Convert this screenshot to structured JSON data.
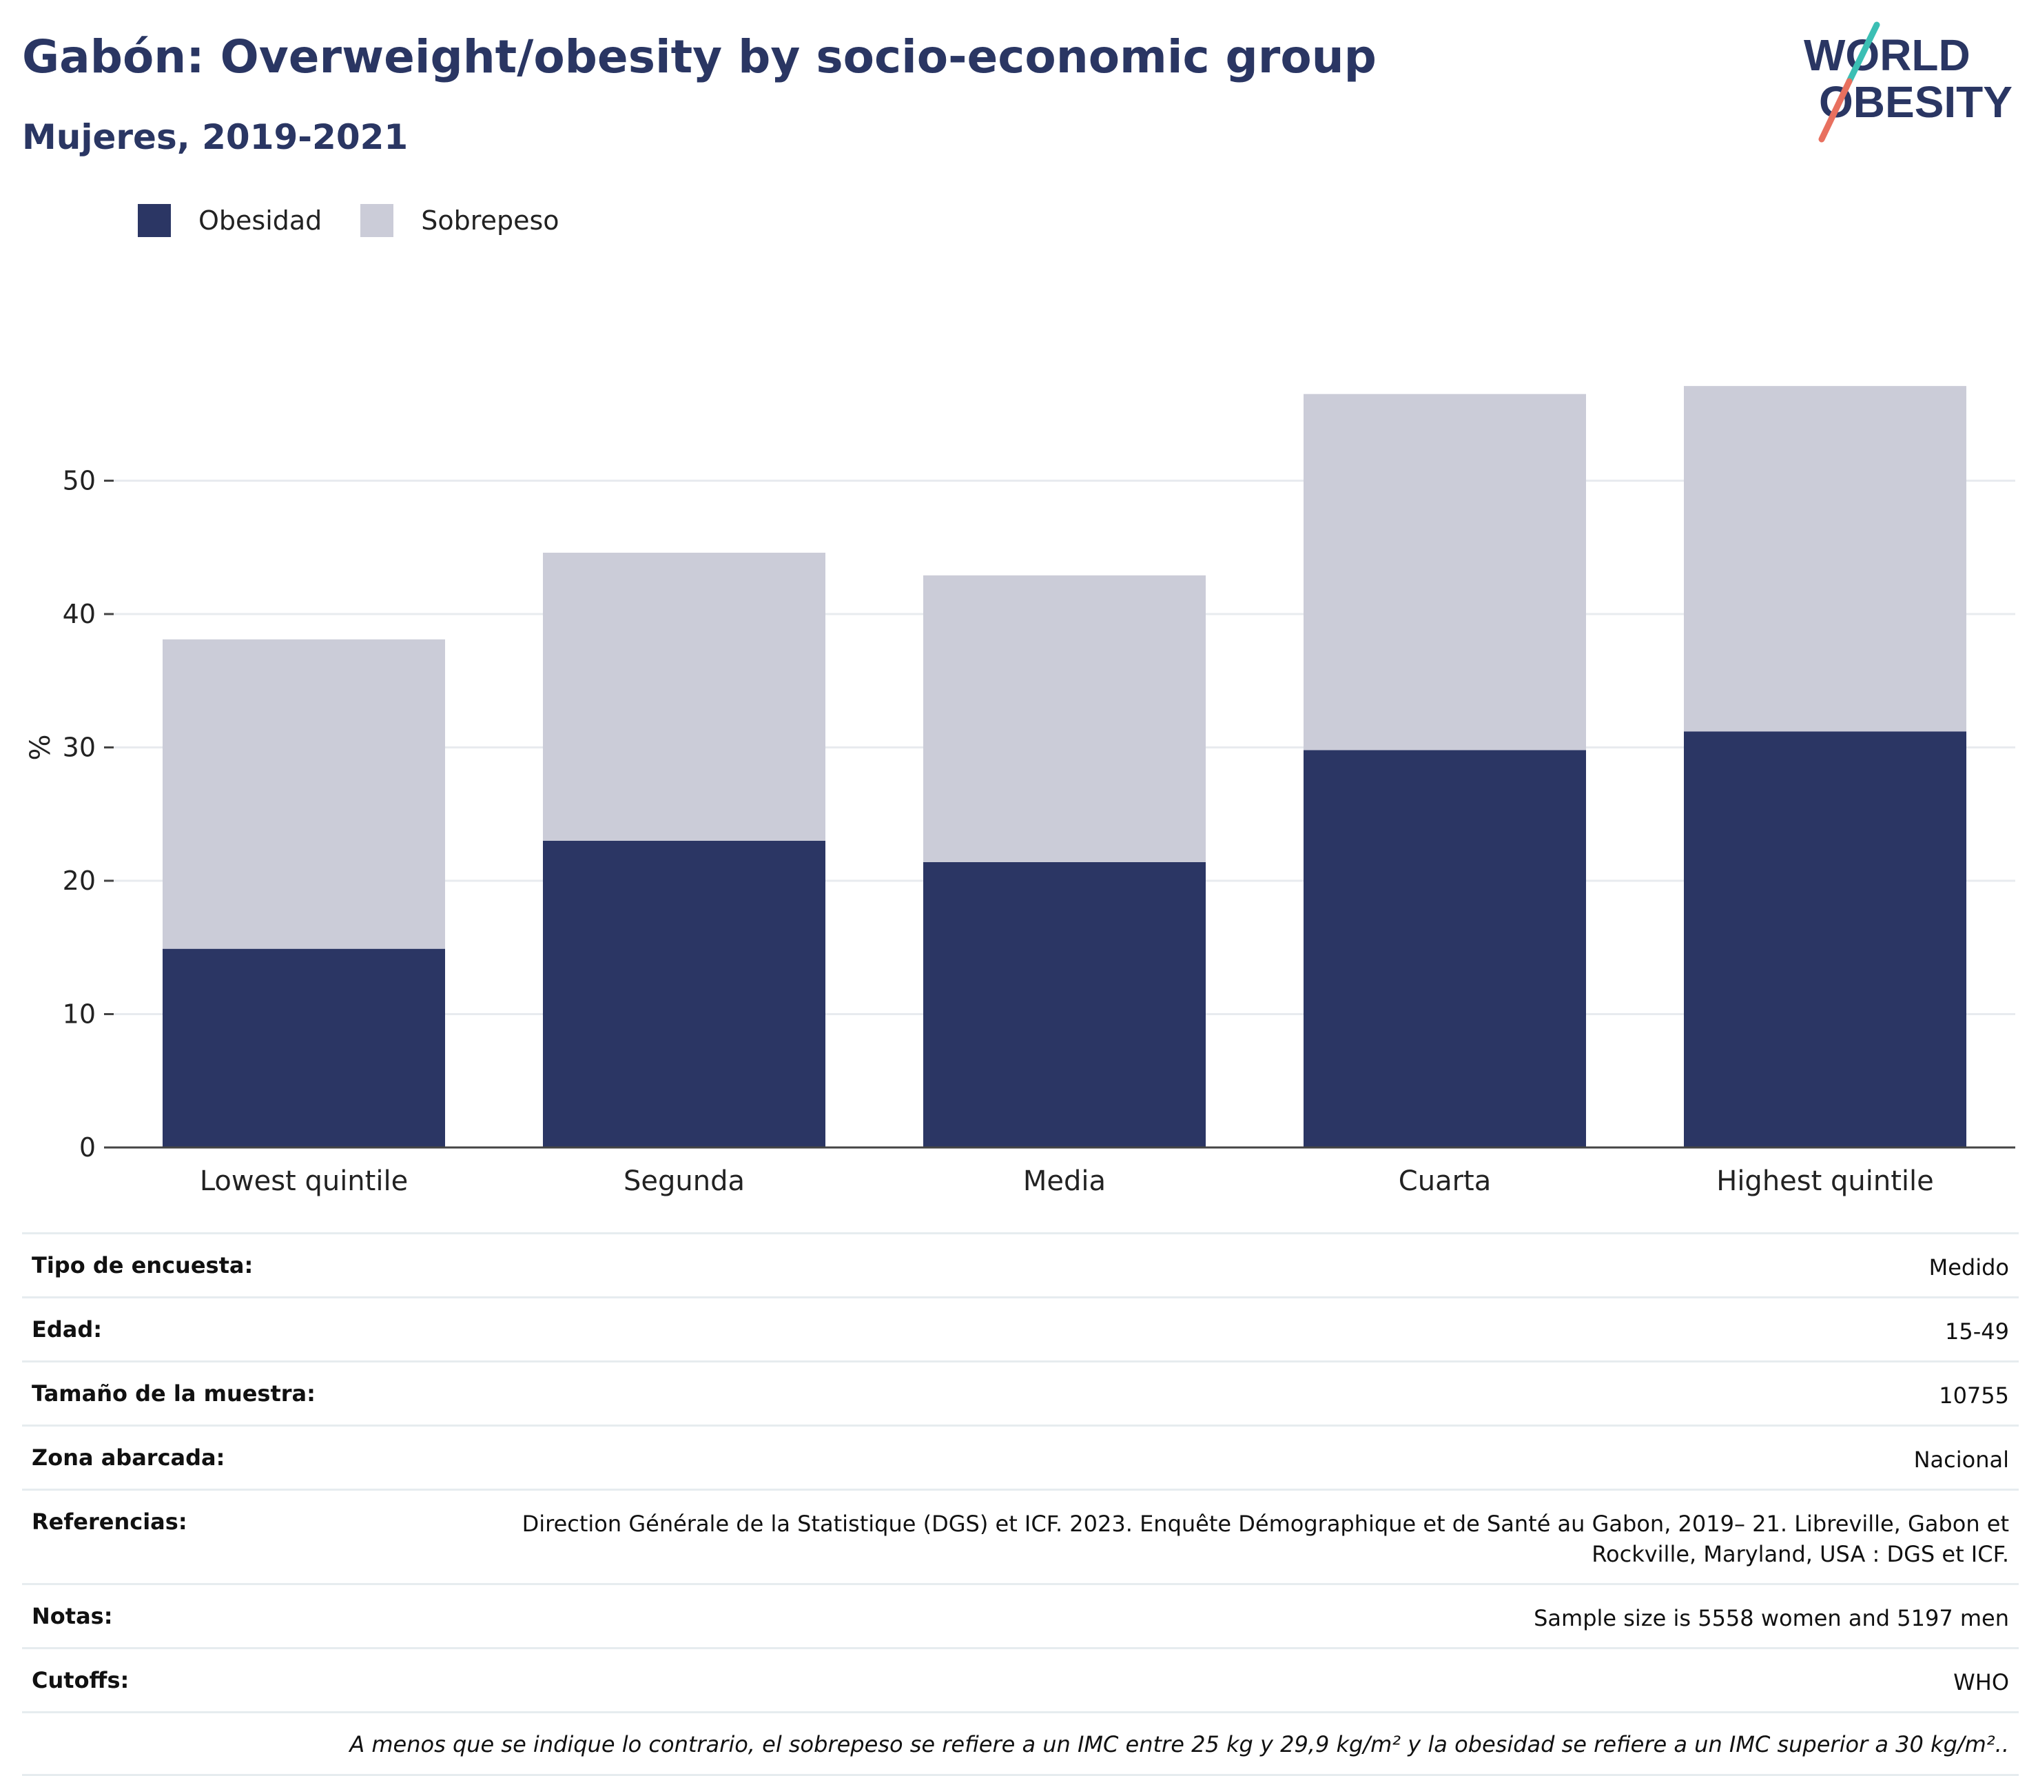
{
  "title": "Gabón: Overweight/obesity by socio-economic group",
  "subtitle": "Mujeres, 2019-2021",
  "logo": {
    "line1": "WORLD",
    "line2": "OBESITY"
  },
  "legend": [
    {
      "label": "Obesidad",
      "color": "#2b3664"
    },
    {
      "label": "Sobrepeso",
      "color": "#cbccd8"
    }
  ],
  "chart_data": {
    "type": "bar",
    "stacked": true,
    "categories": [
      "Lowest quintile",
      "Segunda",
      "Media",
      "Cuarta",
      "Highest quintile"
    ],
    "series": [
      {
        "name": "Obesidad",
        "color": "#2b3664",
        "values": [
          14.9,
          23.0,
          21.4,
          29.8,
          31.2
        ]
      },
      {
        "name": "Sobrepeso",
        "color": "#cbccd8",
        "values": [
          23.2,
          21.6,
          21.5,
          26.7,
          25.9
        ]
      }
    ],
    "ylabel": "%",
    "ylim": [
      0,
      60
    ],
    "yticks": [
      0,
      10,
      20,
      30,
      40,
      50
    ],
    "grid": true
  },
  "info": [
    {
      "key": "Tipo de encuesta:",
      "value": "Medido"
    },
    {
      "key": "Edad:",
      "value": "15-49"
    },
    {
      "key": "Tamaño de la muestra:",
      "value": "10755"
    },
    {
      "key": "Zona abarcada:",
      "value": "Nacional"
    },
    {
      "key": "Referencias:",
      "value": "Direction Générale de la Statistique (DGS) et ICF. 2023. Enquête Démographique et de Santé au Gabon, 2019– 21. Libreville, Gabon et Rockville, Maryland, USA : DGS et ICF."
    },
    {
      "key": "Notas:",
      "value": "Sample size is 5558 women and 5197 men"
    },
    {
      "key": "Cutoffs:",
      "value": "WHO"
    }
  ],
  "footnote": "A menos que se indique lo contrario, el sobrepeso se refiere a un IMC entre 25 kg y 29,9 kg/m² y la obesidad se refiere a un IMC superior a 30 kg/m²..",
  "colors": {
    "accent_teal": "#3bbfb4",
    "accent_coral": "#e8705f",
    "navy": "#2a3663"
  }
}
